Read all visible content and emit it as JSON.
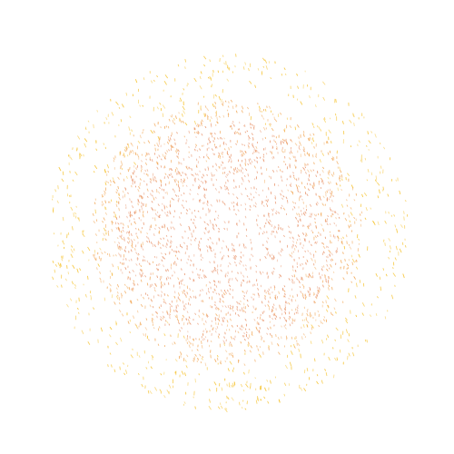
{
  "scene": {
    "background": "#ffffff",
    "description_free": true,
    "palette": {
      "inner": "#e8936a",
      "middle": "#f2a95a",
      "outer": "#f6c433"
    },
    "particles": {
      "inner_count": 1500,
      "middle_count": 900,
      "outer_count": 650
    }
  }
}
